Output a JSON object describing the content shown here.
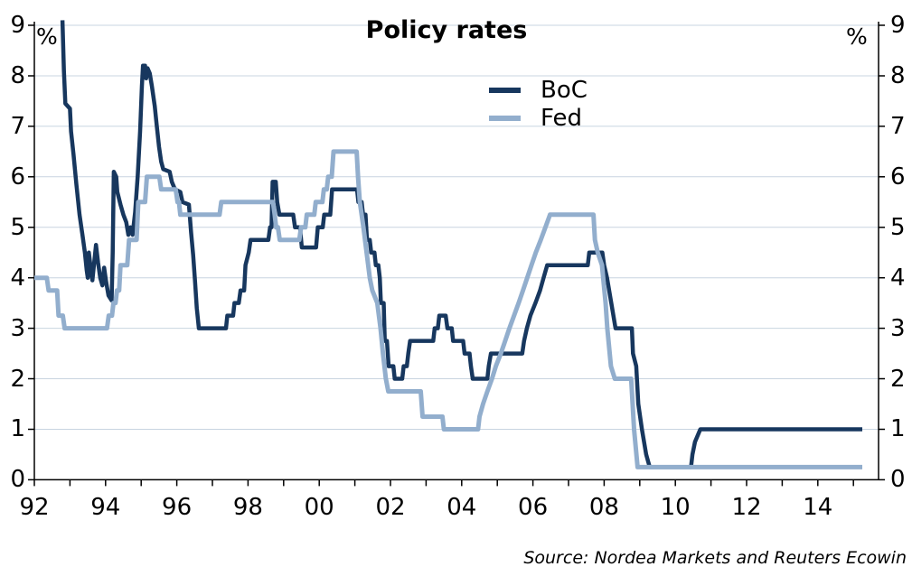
{
  "chart_data": {
    "type": "line",
    "title": "Policy rates",
    "unit_left": "%",
    "unit_right": "%",
    "source": "Source: Nordea Markets and Reuters Ecowin",
    "grid_color": "#C8D4E0",
    "axis_color": "#000000",
    "background": "#FFFFFF",
    "legend_position": "top-center",
    "grid": "horizontal-on",
    "y_axis": {
      "min": 0,
      "max": 9,
      "ticks": [
        0,
        1,
        2,
        3,
        4,
        5,
        6,
        7,
        8,
        9
      ],
      "sides": "both"
    },
    "x_axis": {
      "min": 1992,
      "max": 2015.7,
      "tick_years": [
        1992,
        1993,
        1994,
        1995,
        1996,
        1997,
        1998,
        1999,
        2000,
        2001,
        2002,
        2003,
        2004,
        2005,
        2006,
        2007,
        2008,
        2009,
        2010,
        2011,
        2012,
        2013,
        2014,
        2015
      ],
      "label_years": [
        1992,
        1994,
        1996,
        1998,
        2000,
        2002,
        2004,
        2006,
        2008,
        2010,
        2012,
        2014
      ],
      "labels": [
        "92",
        "94",
        "96",
        "98",
        "00",
        "02",
        "04",
        "06",
        "08",
        "10",
        "12",
        "14"
      ]
    },
    "series": [
      {
        "name": "BoC",
        "color": "#17375E",
        "width": 4.5,
        "points": [
          [
            1992.79,
            9.1
          ],
          [
            1992.83,
            8.1
          ],
          [
            1992.87,
            7.45
          ],
          [
            1993.0,
            7.35
          ],
          [
            1993.03,
            6.9
          ],
          [
            1993.1,
            6.45
          ],
          [
            1993.18,
            5.85
          ],
          [
            1993.27,
            5.25
          ],
          [
            1993.35,
            4.85
          ],
          [
            1993.42,
            4.5
          ],
          [
            1993.47,
            4.15
          ],
          [
            1993.5,
            4.0
          ],
          [
            1993.53,
            4.5
          ],
          [
            1993.58,
            4.2
          ],
          [
            1993.63,
            3.95
          ],
          [
            1993.68,
            4.3
          ],
          [
            1993.73,
            4.65
          ],
          [
            1993.79,
            4.3
          ],
          [
            1993.85,
            4.0
          ],
          [
            1993.91,
            3.85
          ],
          [
            1993.96,
            4.2
          ],
          [
            1994.02,
            3.9
          ],
          [
            1994.08,
            3.65
          ],
          [
            1994.17,
            3.55
          ],
          [
            1994.2,
            4.5
          ],
          [
            1994.23,
            6.1
          ],
          [
            1994.3,
            6.0
          ],
          [
            1994.33,
            5.7
          ],
          [
            1994.42,
            5.45
          ],
          [
            1994.5,
            5.25
          ],
          [
            1994.58,
            5.1
          ],
          [
            1994.64,
            4.85
          ],
          [
            1994.7,
            5.0
          ],
          [
            1994.76,
            4.85
          ],
          [
            1994.83,
            5.3
          ],
          [
            1994.9,
            6.0
          ],
          [
            1994.97,
            6.9
          ],
          [
            1995.02,
            7.8
          ],
          [
            1995.05,
            8.2
          ],
          [
            1995.11,
            8.2
          ],
          [
            1995.14,
            7.95
          ],
          [
            1995.18,
            8.15
          ],
          [
            1995.24,
            8.05
          ],
          [
            1995.3,
            7.8
          ],
          [
            1995.38,
            7.4
          ],
          [
            1995.44,
            7.0
          ],
          [
            1995.5,
            6.6
          ],
          [
            1995.56,
            6.3
          ],
          [
            1995.62,
            6.15
          ],
          [
            1995.8,
            6.1
          ],
          [
            1995.86,
            5.9
          ],
          [
            1995.95,
            5.75
          ],
          [
            1996.1,
            5.7
          ],
          [
            1996.16,
            5.5
          ],
          [
            1996.34,
            5.45
          ],
          [
            1996.4,
            4.9
          ],
          [
            1996.46,
            4.45
          ],
          [
            1996.51,
            3.95
          ],
          [
            1996.56,
            3.4
          ],
          [
            1996.62,
            3.0
          ],
          [
            1997.38,
            3.0
          ],
          [
            1997.42,
            3.25
          ],
          [
            1997.58,
            3.25
          ],
          [
            1997.62,
            3.5
          ],
          [
            1997.74,
            3.5
          ],
          [
            1997.79,
            3.75
          ],
          [
            1997.89,
            3.75
          ],
          [
            1997.93,
            4.25
          ],
          [
            1998.02,
            4.5
          ],
          [
            1998.07,
            4.75
          ],
          [
            1998.57,
            4.75
          ],
          [
            1998.62,
            5.0
          ],
          [
            1998.66,
            5.0
          ],
          [
            1998.69,
            5.9
          ],
          [
            1998.78,
            5.9
          ],
          [
            1998.82,
            5.5
          ],
          [
            1998.88,
            5.25
          ],
          [
            1999.27,
            5.25
          ],
          [
            1999.32,
            5.0
          ],
          [
            1999.46,
            5.0
          ],
          [
            1999.51,
            4.6
          ],
          [
            1999.91,
            4.6
          ],
          [
            1999.96,
            5.0
          ],
          [
            2000.1,
            5.0
          ],
          [
            2000.14,
            5.25
          ],
          [
            2000.31,
            5.25
          ],
          [
            2000.36,
            5.75
          ],
          [
            2001.06,
            5.75
          ],
          [
            2001.1,
            5.5
          ],
          [
            2001.19,
            5.5
          ],
          [
            2001.23,
            5.25
          ],
          [
            2001.3,
            5.25
          ],
          [
            2001.34,
            4.75
          ],
          [
            2001.42,
            4.75
          ],
          [
            2001.46,
            4.5
          ],
          [
            2001.55,
            4.5
          ],
          [
            2001.59,
            4.25
          ],
          [
            2001.66,
            4.25
          ],
          [
            2001.7,
            4.0
          ],
          [
            2001.73,
            3.5
          ],
          [
            2001.81,
            3.5
          ],
          [
            2001.84,
            2.75
          ],
          [
            2001.9,
            2.75
          ],
          [
            2001.95,
            2.25
          ],
          [
            2002.08,
            2.25
          ],
          [
            2002.12,
            2.0
          ],
          [
            2002.33,
            2.0
          ],
          [
            2002.37,
            2.25
          ],
          [
            2002.46,
            2.25
          ],
          [
            2002.5,
            2.5
          ],
          [
            2002.55,
            2.75
          ],
          [
            2003.2,
            2.75
          ],
          [
            2003.24,
            3.0
          ],
          [
            2003.33,
            3.0
          ],
          [
            2003.37,
            3.25
          ],
          [
            2003.55,
            3.25
          ],
          [
            2003.6,
            3.0
          ],
          [
            2003.72,
            3.0
          ],
          [
            2003.76,
            2.75
          ],
          [
            2004.04,
            2.75
          ],
          [
            2004.08,
            2.5
          ],
          [
            2004.22,
            2.5
          ],
          [
            2004.26,
            2.25
          ],
          [
            2004.31,
            2.0
          ],
          [
            2004.72,
            2.0
          ],
          [
            2004.76,
            2.25
          ],
          [
            2004.82,
            2.5
          ],
          [
            2005.7,
            2.5
          ],
          [
            2005.75,
            2.75
          ],
          [
            2005.83,
            3.0
          ],
          [
            2005.93,
            3.25
          ],
          [
            2006.07,
            3.5
          ],
          [
            2006.2,
            3.75
          ],
          [
            2006.3,
            4.0
          ],
          [
            2006.4,
            4.25
          ],
          [
            2007.54,
            4.25
          ],
          [
            2007.58,
            4.5
          ],
          [
            2007.95,
            4.5
          ],
          [
            2008.0,
            4.25
          ],
          [
            2008.08,
            4.0
          ],
          [
            2008.2,
            3.5
          ],
          [
            2008.32,
            3.0
          ],
          [
            2008.78,
            3.0
          ],
          [
            2008.81,
            2.5
          ],
          [
            2008.9,
            2.25
          ],
          [
            2008.96,
            1.5
          ],
          [
            2009.06,
            1.0
          ],
          [
            2009.18,
            0.5
          ],
          [
            2009.28,
            0.25
          ],
          [
            2010.44,
            0.25
          ],
          [
            2010.48,
            0.5
          ],
          [
            2010.55,
            0.75
          ],
          [
            2010.7,
            1.0
          ],
          [
            2015.25,
            1.0
          ]
        ]
      },
      {
        "name": "Fed",
        "color": "#92AECD",
        "width": 5,
        "points": [
          [
            1992.0,
            4.0
          ],
          [
            1992.35,
            4.0
          ],
          [
            1992.4,
            3.75
          ],
          [
            1992.64,
            3.75
          ],
          [
            1992.68,
            3.25
          ],
          [
            1992.8,
            3.25
          ],
          [
            1992.85,
            3.0
          ],
          [
            1994.04,
            3.0
          ],
          [
            1994.09,
            3.25
          ],
          [
            1994.18,
            3.25
          ],
          [
            1994.22,
            3.5
          ],
          [
            1994.28,
            3.5
          ],
          [
            1994.32,
            3.75
          ],
          [
            1994.38,
            3.75
          ],
          [
            1994.42,
            4.25
          ],
          [
            1994.61,
            4.25
          ],
          [
            1994.66,
            4.75
          ],
          [
            1994.87,
            4.75
          ],
          [
            1994.92,
            5.5
          ],
          [
            1995.11,
            5.5
          ],
          [
            1995.16,
            6.0
          ],
          [
            1995.51,
            6.0
          ],
          [
            1995.56,
            5.75
          ],
          [
            1995.97,
            5.75
          ],
          [
            1996.02,
            5.5
          ],
          [
            1996.06,
            5.5
          ],
          [
            1996.1,
            5.25
          ],
          [
            1997.2,
            5.25
          ],
          [
            1997.25,
            5.5
          ],
          [
            1998.7,
            5.5
          ],
          [
            1998.75,
            5.25
          ],
          [
            1998.79,
            5.0
          ],
          [
            1998.84,
            5.0
          ],
          [
            1998.89,
            4.75
          ],
          [
            1999.44,
            4.75
          ],
          [
            1999.49,
            5.0
          ],
          [
            1999.61,
            5.0
          ],
          [
            1999.65,
            5.25
          ],
          [
            1999.86,
            5.25
          ],
          [
            1999.9,
            5.5
          ],
          [
            2000.09,
            5.5
          ],
          [
            2000.13,
            5.75
          ],
          [
            2000.21,
            5.75
          ],
          [
            2000.25,
            6.0
          ],
          [
            2000.35,
            6.0
          ],
          [
            2000.4,
            6.5
          ],
          [
            2001.05,
            6.5
          ],
          [
            2001.09,
            6.0
          ],
          [
            2001.14,
            5.5
          ],
          [
            2001.24,
            5.0
          ],
          [
            2001.33,
            4.5
          ],
          [
            2001.42,
            4.0
          ],
          [
            2001.49,
            3.75
          ],
          [
            2001.63,
            3.5
          ],
          [
            2001.72,
            3.0
          ],
          [
            2001.79,
            2.5
          ],
          [
            2001.87,
            2.0
          ],
          [
            2001.94,
            1.75
          ],
          [
            2002.85,
            1.75
          ],
          [
            2002.9,
            1.25
          ],
          [
            2003.46,
            1.25
          ],
          [
            2003.5,
            1.0
          ],
          [
            2004.46,
            1.0
          ],
          [
            2004.5,
            1.25
          ],
          [
            2004.6,
            1.5
          ],
          [
            2004.72,
            1.75
          ],
          [
            2004.85,
            2.0
          ],
          [
            2004.96,
            2.25
          ],
          [
            2005.1,
            2.5
          ],
          [
            2005.22,
            2.75
          ],
          [
            2005.34,
            3.0
          ],
          [
            2005.47,
            3.25
          ],
          [
            2005.6,
            3.5
          ],
          [
            2005.72,
            3.75
          ],
          [
            2005.84,
            4.0
          ],
          [
            2005.96,
            4.25
          ],
          [
            2006.08,
            4.5
          ],
          [
            2006.22,
            4.75
          ],
          [
            2006.35,
            5.0
          ],
          [
            2006.48,
            5.25
          ],
          [
            2007.7,
            5.25
          ],
          [
            2007.74,
            4.75
          ],
          [
            2007.82,
            4.5
          ],
          [
            2007.94,
            4.25
          ],
          [
            2008.04,
            3.5
          ],
          [
            2008.09,
            3.0
          ],
          [
            2008.19,
            2.25
          ],
          [
            2008.3,
            2.0
          ],
          [
            2008.76,
            2.0
          ],
          [
            2008.8,
            1.5
          ],
          [
            2008.84,
            1.0
          ],
          [
            2008.94,
            0.25
          ],
          [
            2015.25,
            0.25
          ]
        ]
      }
    ]
  }
}
